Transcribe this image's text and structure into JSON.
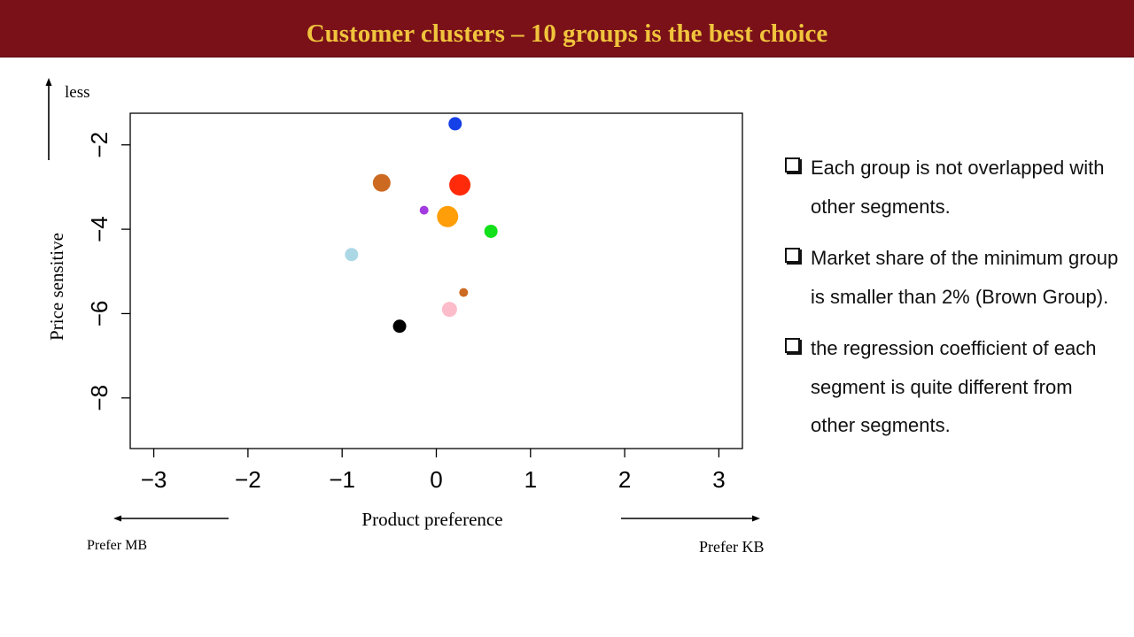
{
  "slide": {
    "title": "Customer clusters – 10 groups is the best choice",
    "colors": {
      "title_bar": "#7a1118",
      "title_text": "#f0c43c"
    }
  },
  "annotations": {
    "top_arrow_label": "less",
    "left_arrow_label": "Prefer MB",
    "right_arrow_label": "Prefer KB"
  },
  "bullets": [
    {
      "text": "Each group is not overlapped with other segments."
    },
    {
      "text": "Market share of the minimum group is smaller than 2% (Brown Group)."
    },
    {
      "text": "the regression coefficient of each segment is quite different from other segments."
    }
  ],
  "chart_data": {
    "type": "scatter",
    "xlabel": "Product preference",
    "ylabel": "Price sensitive",
    "xlim": [
      -3.25,
      3.25
    ],
    "ylim": [
      -9.2,
      -1.25
    ],
    "xticks": [
      -3,
      -2,
      -1,
      0,
      1,
      2,
      3
    ],
    "yticks": [
      -2,
      -4,
      -6,
      -8
    ],
    "grid": false,
    "legend": "none",
    "points": [
      {
        "x": 0.2,
        "y": -1.5,
        "size": "medium",
        "color": "#1540e8"
      },
      {
        "x": -0.58,
        "y": -2.9,
        "size": "large",
        "color": "#cc6a22"
      },
      {
        "x": 0.25,
        "y": -2.95,
        "size": "xlarge",
        "color": "#ff2a0a"
      },
      {
        "x": -0.13,
        "y": -3.55,
        "size": "small",
        "color": "#a23be0"
      },
      {
        "x": 0.12,
        "y": -3.7,
        "size": "xlarge",
        "color": "#ff9e08"
      },
      {
        "x": 0.58,
        "y": -4.05,
        "size": "medium",
        "color": "#12e01a"
      },
      {
        "x": -0.9,
        "y": -4.6,
        "size": "medium",
        "color": "#acd8e6"
      },
      {
        "x": 0.29,
        "y": -5.5,
        "size": "small",
        "color": "#cc6a22"
      },
      {
        "x": 0.14,
        "y": -5.9,
        "size": "medium-large",
        "color": "#fcbcca"
      },
      {
        "x": -0.39,
        "y": -6.3,
        "size": "medium",
        "color": "#000000"
      }
    ]
  }
}
